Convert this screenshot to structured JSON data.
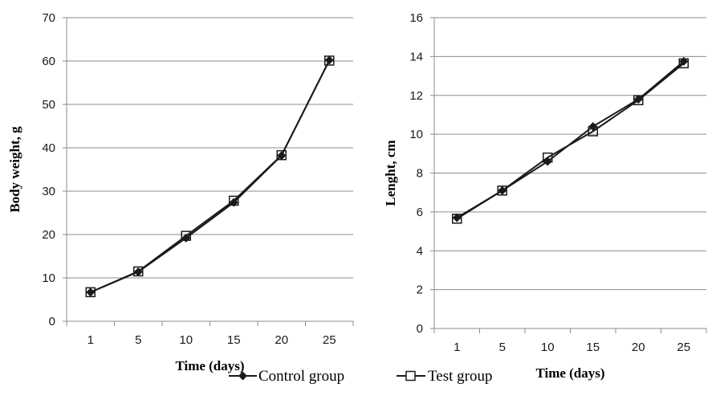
{
  "chart_data": [
    {
      "type": "line",
      "title": "",
      "xlabel": "Time (days)",
      "ylabel": "Body weight, g",
      "categories": [
        "1",
        "5",
        "10",
        "15",
        "20",
        "25"
      ],
      "ylim": [
        0,
        70
      ],
      "yticks": [
        "0",
        "10",
        "20",
        "30",
        "40",
        "50",
        "60",
        "70"
      ],
      "grid": "horizontal",
      "series": [
        {
          "name": "Control group",
          "marker": "filled-diamond",
          "values": [
            6.7,
            11.4,
            19.2,
            27.4,
            38.2,
            60.2
          ]
        },
        {
          "name": "Test group",
          "marker": "open-square",
          "values": [
            6.7,
            11.5,
            19.7,
            27.8,
            38.3,
            60.1
          ]
        }
      ]
    },
    {
      "type": "line",
      "title": "",
      "xlabel": "Time (days)",
      "ylabel": "Lenght, cm",
      "categories": [
        "1",
        "5",
        "10",
        "15",
        "20",
        "25"
      ],
      "ylim": [
        0,
        16
      ],
      "yticks": [
        "0",
        "2",
        "4",
        "6",
        "8",
        "10",
        "12",
        "14",
        "16"
      ],
      "grid": "horizontal",
      "series": [
        {
          "name": "Control group",
          "marker": "filled-diamond",
          "values": [
            5.7,
            7.1,
            8.6,
            10.4,
            11.8,
            13.75
          ]
        },
        {
          "name": "Test group",
          "marker": "open-square",
          "values": [
            5.65,
            7.1,
            8.8,
            10.15,
            11.75,
            13.65
          ]
        }
      ]
    }
  ],
  "legend": {
    "position": "bottom",
    "items": [
      {
        "label": "Control group",
        "marker": "filled-diamond"
      },
      {
        "label": "Test group",
        "marker": "open-square"
      }
    ]
  },
  "colors": {
    "line": "#1a1a1a",
    "grid": "#8c8c8c",
    "axis": "#8c8c8c"
  }
}
